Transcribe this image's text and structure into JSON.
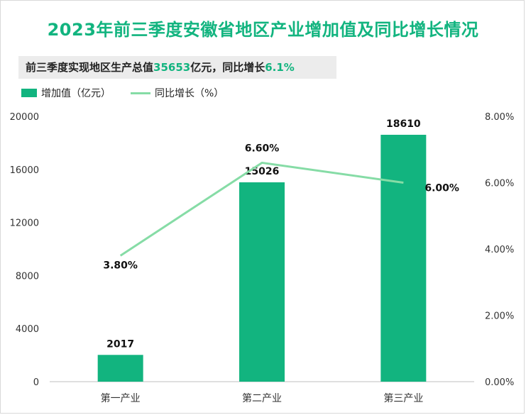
{
  "title": "2023年前三季度安徽省地区产业增加值及同比增长情况",
  "subtitle": {
    "prefix": "前三季度实现地区生产总值",
    "value": "35653",
    "middle": "亿元，同比增长",
    "growth": "6.1%"
  },
  "colors": {
    "bar": "#12b47f",
    "line": "#86dca6",
    "accent": "#12b47f"
  },
  "chart_data": {
    "type": "bar",
    "categories": [
      "第一产业",
      "第二产业",
      "第三产业"
    ],
    "series": [
      {
        "name": "增加值（亿元）",
        "type": "bar",
        "axis": "left",
        "values": [
          2017,
          15026,
          18610
        ]
      },
      {
        "name": "同比增长（%）",
        "type": "line",
        "axis": "right",
        "values": [
          3.8,
          6.6,
          6.0
        ]
      }
    ],
    "bar_labels": [
      "2017",
      "15026",
      "18610"
    ],
    "line_labels": [
      "3.80%",
      "6.60%",
      "6.00%"
    ],
    "y_left": {
      "min": 0,
      "max": 20000,
      "ticks": [
        "0",
        "4000",
        "8000",
        "12000",
        "16000",
        "20000"
      ]
    },
    "y_right": {
      "min": 0,
      "max": 8,
      "ticks": [
        "0.00%",
        "2.00%",
        "4.00%",
        "6.00%",
        "8.00%"
      ]
    },
    "legend_position": "top-left"
  }
}
